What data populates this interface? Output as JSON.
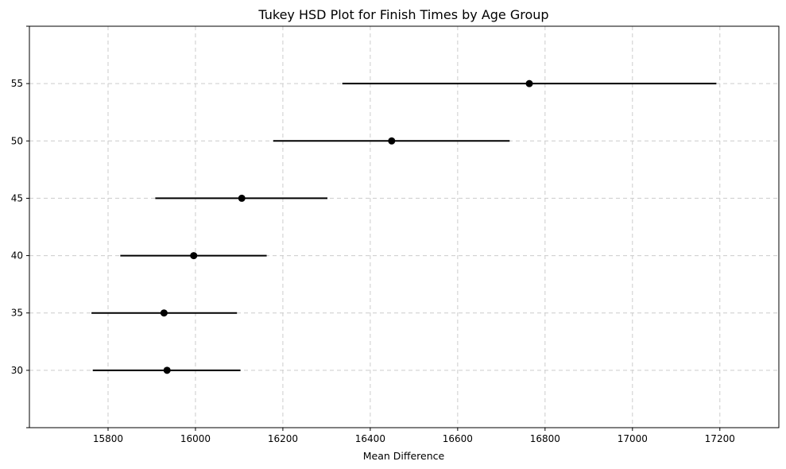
{
  "chart_data": {
    "type": "scatter",
    "title": "Tukey HSD Plot for Finish Times by Age Group",
    "xlabel": "Mean Difference",
    "ylabel": "",
    "xlim": [
      15620,
      17335
    ],
    "ylim": [
      25,
      60
    ],
    "xticks": [
      15800,
      16000,
      16200,
      16400,
      16600,
      16800,
      17000,
      17200
    ],
    "yticks": [
      30,
      35,
      40,
      45,
      50,
      55
    ],
    "grid": true,
    "groups": [
      {
        "label": "30",
        "mean": 15935,
        "lower": 15765,
        "upper": 16103
      },
      {
        "label": "35",
        "mean": 15928,
        "lower": 15762,
        "upper": 16095
      },
      {
        "label": "40",
        "mean": 15996,
        "lower": 15828,
        "upper": 16163
      },
      {
        "label": "45",
        "mean": 16106,
        "lower": 15908,
        "upper": 16302
      },
      {
        "label": "50",
        "mean": 16449,
        "lower": 16178,
        "upper": 16719
      },
      {
        "label": "55",
        "mean": 16764,
        "lower": 16336,
        "upper": 17192
      }
    ]
  }
}
